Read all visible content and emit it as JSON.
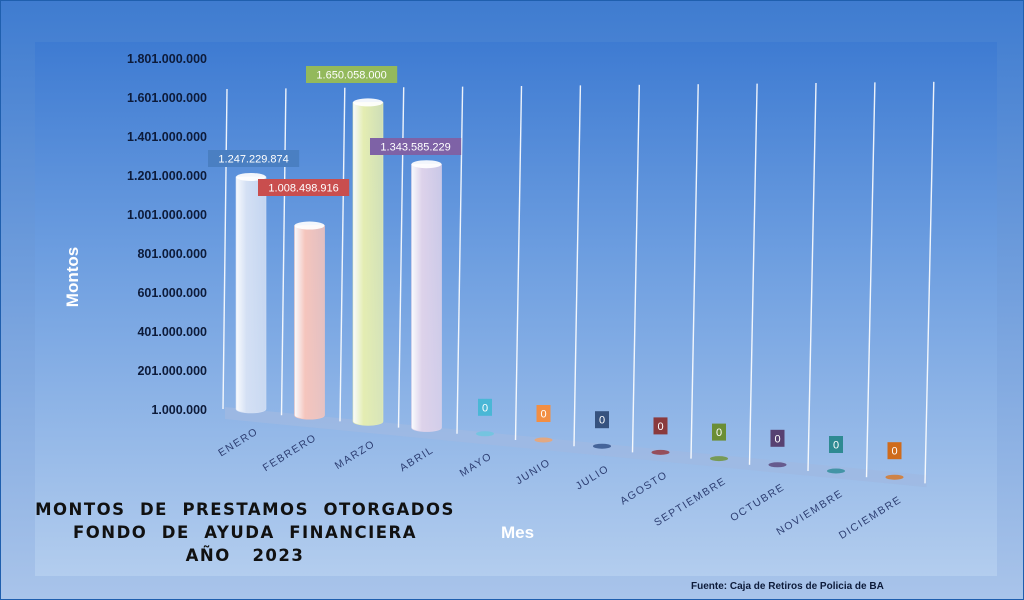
{
  "title_lines": [
    "MONTOS  DE  PRESTAMOS  OTORGADOS",
    "FONDO  DE  AYUDA  FINANCIERA",
    "AÑO   2023"
  ],
  "source": "Fuente: Caja de Retiros de Policia de BA",
  "chart_data": {
    "type": "bar",
    "style": "3d-cylinder",
    "title": "MONTOS DE PRESTAMOS OTORGADOS FONDO DE AYUDA FINANCIERA AÑO 2023",
    "xlabel": "Mes",
    "ylabel": "Montos",
    "categories": [
      "ENERO",
      "FEBRERO",
      "MARZO",
      "ABRIL",
      "MAYO",
      "JUNIO",
      "JULIO",
      "AGOSTO",
      "SEPTIEMBRE",
      "OCTUBRE",
      "NOVIEMBRE",
      "DICIEMBRE"
    ],
    "values": [
      1247229874,
      1008498916,
      1650058000,
      1343585229,
      0,
      0,
      0,
      0,
      0,
      0,
      0,
      0
    ],
    "data_labels": [
      "1.247.229.874",
      "1.008.498.916",
      "1.650.058.000",
      "1.343.585.229",
      "0",
      "0",
      "0",
      "0",
      "0",
      "0",
      "0",
      "0"
    ],
    "yticks": [
      "1.000.000",
      "201.000.000",
      "401.000.000",
      "601.000.000",
      "801.000.000",
      "1.001.000.000",
      "1.201.000.000",
      "1.401.000.000",
      "1.601.000.000",
      "1.801.000.000"
    ],
    "ylim": [
      1000000,
      1801000000
    ],
    "grid": true,
    "legend": "none",
    "colors": {
      "bars": [
        "#d4e0f4",
        "#f5c5bd",
        "#e4edb2",
        "#ddd2ea",
        "#6cc7de",
        "#f4a469",
        "#2f4f86",
        "#93343a",
        "#6d9232",
        "#584478",
        "#2c8b96",
        "#d9761f"
      ],
      "bar_labels": [
        "#4a7fc2",
        "#c94e4e",
        "#93b95c",
        "#7e62a6",
        "#4ab7d6",
        "#f28e43",
        "#36527e",
        "#8a3a3d",
        "#6b8e35",
        "#574172",
        "#2e8a92",
        "#cf6b1c"
      ]
    }
  }
}
